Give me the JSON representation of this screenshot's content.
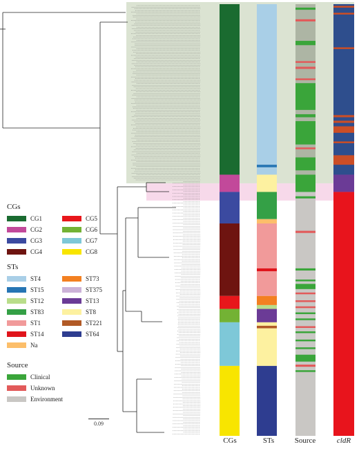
{
  "colors": {
    "CG1": "#1a6b30",
    "CG2": "#c2499a",
    "CG3": "#3b4aa0",
    "CG4": "#6e1410",
    "CG5": "#e8161b",
    "CG6": "#73b234",
    "CG7": "#7ec8d8",
    "CG8": "#f8e500",
    "ST4": "#a9cfe7",
    "ST15": "#2675b4",
    "ST12": "#b9dd8a",
    "ST83": "#34a046",
    "ST1": "#f19a9a",
    "ST14": "#e0141b",
    "Na": "#fcbe6a",
    "ST73": "#f38021",
    "ST375": "#ccb2d8",
    "ST13": "#6b3b96",
    "ST8": "#fdf1a0",
    "ST221": "#b15a26",
    "ST64": "#2e3d90",
    "Clinical": "#3aa53a",
    "Unknown": "#e25a5a",
    "Environment": "#c9c7c4",
    "dR_blue": "#2e4e8d",
    "dR_orange": "#cb4e26",
    "dR_red": "#e8141c"
  },
  "legend": {
    "cgs_title": "CGs",
    "cgs": [
      {
        "label": "CG1",
        "color_key": "CG1"
      },
      {
        "label": "CG5",
        "color_key": "CG5"
      },
      {
        "label": "CG2",
        "color_key": "CG2"
      },
      {
        "label": "CG6",
        "color_key": "CG6"
      },
      {
        "label": "CG3",
        "color_key": "CG3"
      },
      {
        "label": "CG7",
        "color_key": "CG7"
      },
      {
        "label": "CG4",
        "color_key": "CG4"
      },
      {
        "label": "CG8",
        "color_key": "CG8"
      }
    ],
    "sts_title": "STs",
    "sts": [
      {
        "label": "ST4",
        "color_key": "ST4"
      },
      {
        "label": "ST73",
        "color_key": "ST73"
      },
      {
        "label": "ST15",
        "color_key": "ST15"
      },
      {
        "label": "ST375",
        "color_key": "ST375"
      },
      {
        "label": "ST12",
        "color_key": "ST12"
      },
      {
        "label": "ST13",
        "color_key": "ST13"
      },
      {
        "label": "ST83",
        "color_key": "ST83"
      },
      {
        "label": "ST8",
        "color_key": "ST8"
      },
      {
        "label": "ST1",
        "color_key": "ST1"
      },
      {
        "label": "ST221",
        "color_key": "ST221"
      },
      {
        "label": "ST14",
        "color_key": "ST14"
      },
      {
        "label": "ST64",
        "color_key": "ST64"
      },
      {
        "label": "Na",
        "color_key": "Na"
      }
    ],
    "source_title": "Source",
    "source": [
      {
        "label": "Clinical",
        "color_key": "Clinical"
      },
      {
        "label": "Unknown",
        "color_key": "Unknown"
      },
      {
        "label": "Environment",
        "color_key": "Environment"
      }
    ]
  },
  "columns": {
    "cgs_label": "CGs",
    "sts_label": "STs",
    "source_label": "Source",
    "dr_label": "cldR"
  },
  "scale_bar": "0.09",
  "tracks": {
    "cgs": [
      {
        "from": 0.0,
        "to": 0.395,
        "key": "CG1"
      },
      {
        "from": 0.395,
        "to": 0.435,
        "key": "CG2"
      },
      {
        "from": 0.435,
        "to": 0.508,
        "key": "CG3"
      },
      {
        "from": 0.508,
        "to": 0.676,
        "key": "CG4"
      },
      {
        "from": 0.676,
        "to": 0.706,
        "key": "CG5"
      },
      {
        "from": 0.706,
        "to": 0.737,
        "key": "CG6"
      },
      {
        "from": 0.737,
        "to": 0.838,
        "key": "CG7"
      },
      {
        "from": 0.838,
        "to": 1.0,
        "key": "CG8"
      }
    ],
    "sts": [
      {
        "from": 0.0,
        "to": 0.372,
        "key": "ST4"
      },
      {
        "from": 0.372,
        "to": 0.378,
        "key": "ST15"
      },
      {
        "from": 0.378,
        "to": 0.395,
        "key": "ST4"
      },
      {
        "from": 0.395,
        "to": 0.435,
        "key": "ST8"
      },
      {
        "from": 0.435,
        "to": 0.498,
        "key": "ST83"
      },
      {
        "from": 0.498,
        "to": 0.508,
        "key": "Na"
      },
      {
        "from": 0.508,
        "to": 0.612,
        "key": "ST1"
      },
      {
        "from": 0.612,
        "to": 0.619,
        "key": "ST14"
      },
      {
        "from": 0.619,
        "to": 0.676,
        "key": "ST1"
      },
      {
        "from": 0.676,
        "to": 0.697,
        "key": "ST73"
      },
      {
        "from": 0.697,
        "to": 0.706,
        "key": "ST12"
      },
      {
        "from": 0.706,
        "to": 0.737,
        "key": "ST13"
      },
      {
        "from": 0.737,
        "to": 0.745,
        "key": "ST8"
      },
      {
        "from": 0.745,
        "to": 0.751,
        "key": "ST221"
      },
      {
        "from": 0.751,
        "to": 0.838,
        "key": "ST8"
      },
      {
        "from": 0.838,
        "to": 1.0,
        "key": "ST64"
      }
    ],
    "source_base": "Environment",
    "source_top_base": "Clinical",
    "source": [
      {
        "from": 0.008,
        "to": 0.013,
        "key": "Clinical"
      },
      {
        "from": 0.035,
        "to": 0.04,
        "key": "Unknown"
      },
      {
        "from": 0.085,
        "to": 0.095,
        "key": "Clinical"
      },
      {
        "from": 0.132,
        "to": 0.136,
        "key": "Unknown"
      },
      {
        "from": 0.145,
        "to": 0.15,
        "key": "Unknown"
      },
      {
        "from": 0.172,
        "to": 0.176,
        "key": "Unknown"
      },
      {
        "from": 0.183,
        "to": 0.245,
        "key": "Clinical"
      },
      {
        "from": 0.255,
        "to": 0.262,
        "key": "Clinical"
      },
      {
        "from": 0.271,
        "to": 0.325,
        "key": "Clinical"
      },
      {
        "from": 0.332,
        "to": 0.336,
        "key": "Unknown"
      },
      {
        "from": 0.355,
        "to": 0.385,
        "key": "Clinical"
      },
      {
        "from": 0.395,
        "to": 0.435,
        "key": "Clinical"
      },
      {
        "from": 0.445,
        "to": 0.45,
        "key": "Clinical"
      },
      {
        "from": 0.525,
        "to": 0.53,
        "key": "Unknown"
      },
      {
        "from": 0.612,
        "to": 0.617,
        "key": "Clinical"
      },
      {
        "from": 0.638,
        "to": 0.642,
        "key": "Clinical"
      },
      {
        "from": 0.648,
        "to": 0.66,
        "key": "Clinical"
      },
      {
        "from": 0.668,
        "to": 0.672,
        "key": "Unknown"
      },
      {
        "from": 0.686,
        "to": 0.69,
        "key": "Unknown"
      },
      {
        "from": 0.7,
        "to": 0.704,
        "key": "Unknown"
      },
      {
        "from": 0.714,
        "to": 0.718,
        "key": "Clinical"
      },
      {
        "from": 0.728,
        "to": 0.732,
        "key": "Clinical"
      },
      {
        "from": 0.746,
        "to": 0.75,
        "key": "Unknown"
      },
      {
        "from": 0.758,
        "to": 0.762,
        "key": "Clinical"
      },
      {
        "from": 0.777,
        "to": 0.781,
        "key": "Clinical"
      },
      {
        "from": 0.795,
        "to": 0.799,
        "key": "Clinical"
      },
      {
        "from": 0.812,
        "to": 0.828,
        "key": "Clinical"
      },
      {
        "from": 0.835,
        "to": 0.84,
        "key": "Unknown"
      },
      {
        "from": 0.848,
        "to": 0.852,
        "key": "Clinical"
      }
    ],
    "dr_segments": [
      {
        "from": 0.0,
        "to": 0.395,
        "key": "dR_blue"
      },
      {
        "from": 0.395,
        "to": 0.435,
        "key": "ST13"
      },
      {
        "from": 0.435,
        "to": 1.0,
        "key": "dR_red"
      }
    ],
    "dr_marks": [
      {
        "from": 0.004,
        "to": 0.008,
        "key": "dR_orange"
      },
      {
        "from": 0.02,
        "to": 0.024,
        "key": "dR_orange"
      },
      {
        "from": 0.1,
        "to": 0.104,
        "key": "dR_orange"
      },
      {
        "from": 0.257,
        "to": 0.262,
        "key": "dR_orange"
      },
      {
        "from": 0.27,
        "to": 0.275,
        "key": "dR_orange"
      },
      {
        "from": 0.283,
        "to": 0.298,
        "key": "dR_orange"
      },
      {
        "from": 0.318,
        "to": 0.322,
        "key": "dR_orange"
      },
      {
        "from": 0.35,
        "to": 0.372,
        "key": "dR_orange"
      }
    ]
  }
}
